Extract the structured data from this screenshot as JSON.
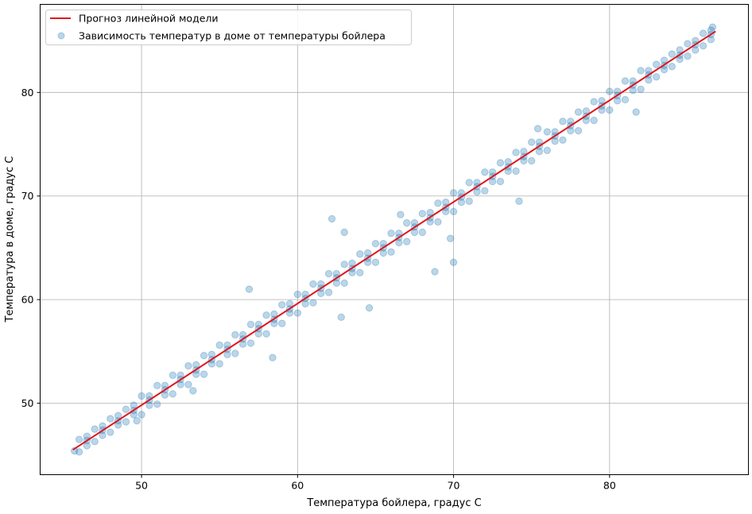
{
  "chart_data": {
    "type": "scatter",
    "title": "",
    "xlabel": "Температура бойлера, градус С",
    "ylabel": "Температура в доме, градус С",
    "xlim": [
      43.5,
      88.9
    ],
    "ylim": [
      43.1,
      88.5
    ],
    "xticks": [
      50,
      60,
      70,
      80
    ],
    "yticks": [
      50,
      60,
      70,
      80
    ],
    "grid": true,
    "legend_position": "top-left",
    "series": [
      {
        "name": "Прогноз линейной модели",
        "type": "line",
        "color": "#e0141e",
        "points": [
          [
            45.6,
            45.5
          ],
          [
            86.8,
            85.9
          ]
        ]
      },
      {
        "name": "Зависимость температур в доме от температуры бойлера",
        "type": "scatter",
        "color": "#1f77b4",
        "alpha": 0.3,
        "points": [
          [
            45.7,
            45.4
          ],
          [
            46,
            45.3
          ],
          [
            46,
            46.5
          ],
          [
            47,
            46.3
          ],
          [
            47,
            47.5
          ],
          [
            48,
            47.2
          ],
          [
            48,
            48.5
          ],
          [
            49,
            48.2
          ],
          [
            49,
            49.4
          ],
          [
            50,
            48.9
          ],
          [
            50,
            50.7
          ],
          [
            51,
            49.9
          ],
          [
            51,
            51.7
          ],
          [
            52,
            50.9
          ],
          [
            52,
            52.7
          ],
          [
            53,
            51.8
          ],
          [
            53,
            53.6
          ],
          [
            54,
            52.8
          ],
          [
            54,
            54.6
          ],
          [
            55,
            53.8
          ],
          [
            55,
            55.6
          ],
          [
            56,
            54.8
          ],
          [
            56,
            56.6
          ],
          [
            57,
            55.8
          ],
          [
            57,
            57.6
          ],
          [
            58,
            56.7
          ],
          [
            58,
            58.5
          ],
          [
            59,
            57.7
          ],
          [
            59,
            59.5
          ],
          [
            60,
            58.7
          ],
          [
            60,
            60.5
          ],
          [
            61,
            59.7
          ],
          [
            61,
            61.5
          ],
          [
            62,
            60.7
          ],
          [
            62,
            62.5
          ],
          [
            63,
            61.6
          ],
          [
            63,
            63.4
          ],
          [
            64,
            62.6
          ],
          [
            64,
            64.4
          ],
          [
            65,
            63.6
          ],
          [
            65,
            65.4
          ],
          [
            66,
            64.6
          ],
          [
            66,
            66.4
          ],
          [
            67,
            65.6
          ],
          [
            67,
            67.4
          ],
          [
            68,
            66.5
          ],
          [
            68,
            68.3
          ],
          [
            69,
            67.5
          ],
          [
            69,
            69.3
          ],
          [
            70,
            68.5
          ],
          [
            70,
            70.3
          ],
          [
            71,
            69.5
          ],
          [
            71,
            71.3
          ],
          [
            72,
            70.5
          ],
          [
            72,
            72.3
          ],
          [
            73,
            71.4
          ],
          [
            73,
            73.2
          ],
          [
            74,
            72.4
          ],
          [
            74,
            74.2
          ],
          [
            75,
            73.4
          ],
          [
            75,
            75.2
          ],
          [
            76,
            74.4
          ],
          [
            76,
            76.2
          ],
          [
            77,
            75.4
          ],
          [
            77,
            77.2
          ],
          [
            78,
            76.3
          ],
          [
            78,
            78.1
          ],
          [
            79,
            77.3
          ],
          [
            79,
            79.1
          ],
          [
            80,
            78.3
          ],
          [
            80,
            80.1
          ],
          [
            81,
            79.3
          ],
          [
            81,
            81.1
          ],
          [
            82,
            80.3
          ],
          [
            82,
            82.1
          ],
          [
            83,
            81.5
          ],
          [
            83,
            82.7
          ],
          [
            84,
            82.5
          ],
          [
            84,
            83.7
          ],
          [
            85,
            83.5
          ],
          [
            85,
            84.7
          ],
          [
            86,
            84.5
          ],
          [
            86,
            85.7
          ],
          [
            86.6,
            86.3
          ],
          [
            46.5,
            45.9
          ],
          [
            46.5,
            46.4
          ],
          [
            46.5,
            46.8
          ],
          [
            47.5,
            46.9
          ],
          [
            47.5,
            47.4
          ],
          [
            47.5,
            47.8
          ],
          [
            48.5,
            47.9
          ],
          [
            48.5,
            48.3
          ],
          [
            48.5,
            48.8
          ],
          [
            49.5,
            48.9
          ],
          [
            49.5,
            49.3
          ],
          [
            49.5,
            49.8
          ],
          [
            50.5,
            49.8
          ],
          [
            50.5,
            50.3
          ],
          [
            50.5,
            50.7
          ],
          [
            51.5,
            50.8
          ],
          [
            51.5,
            51.3
          ],
          [
            51.5,
            51.7
          ],
          [
            52.5,
            51.8
          ],
          [
            52.5,
            52.3
          ],
          [
            52.5,
            52.7
          ],
          [
            53.5,
            52.8
          ],
          [
            53.5,
            53.2
          ],
          [
            53.5,
            53.7
          ],
          [
            54.5,
            53.8
          ],
          [
            54.5,
            54.2
          ],
          [
            54.5,
            54.7
          ],
          [
            55.5,
            54.7
          ],
          [
            55.5,
            55.2
          ],
          [
            55.5,
            55.6
          ],
          [
            56.5,
            55.7
          ],
          [
            56.5,
            56.2
          ],
          [
            56.5,
            56.6
          ],
          [
            57.5,
            56.7
          ],
          [
            57.5,
            57.2
          ],
          [
            57.5,
            57.6
          ],
          [
            58.5,
            57.7
          ],
          [
            58.5,
            58.1
          ],
          [
            58.5,
            58.6
          ],
          [
            59.5,
            58.7
          ],
          [
            59.5,
            59.1
          ],
          [
            59.5,
            59.6
          ],
          [
            60.5,
            59.6
          ],
          [
            60.5,
            60.1
          ],
          [
            60.5,
            60.5
          ],
          [
            61.5,
            60.6
          ],
          [
            61.5,
            61.1
          ],
          [
            61.5,
            61.5
          ],
          [
            62.5,
            61.6
          ],
          [
            62.5,
            62.1
          ],
          [
            62.5,
            62.5
          ],
          [
            63.5,
            62.6
          ],
          [
            63.5,
            63.0
          ],
          [
            63.5,
            63.5
          ],
          [
            64.5,
            63.6
          ],
          [
            64.5,
            64.0
          ],
          [
            64.5,
            64.5
          ],
          [
            65.5,
            64.5
          ],
          [
            65.5,
            65.0
          ],
          [
            65.5,
            65.4
          ],
          [
            66.5,
            65.5
          ],
          [
            66.5,
            66.0
          ],
          [
            66.5,
            66.4
          ],
          [
            67.5,
            66.5
          ],
          [
            67.5,
            67.0
          ],
          [
            67.5,
            67.4
          ],
          [
            68.5,
            67.5
          ],
          [
            68.5,
            67.9
          ],
          [
            68.5,
            68.4
          ],
          [
            69.5,
            68.5
          ],
          [
            69.5,
            68.9
          ],
          [
            69.5,
            69.4
          ],
          [
            70.5,
            69.4
          ],
          [
            70.5,
            69.9
          ],
          [
            70.5,
            70.3
          ],
          [
            71.5,
            70.4
          ],
          [
            71.5,
            70.9
          ],
          [
            71.5,
            71.3
          ],
          [
            72.5,
            71.4
          ],
          [
            72.5,
            71.9
          ],
          [
            72.5,
            72.3
          ],
          [
            73.5,
            72.4
          ],
          [
            73.5,
            72.8
          ],
          [
            73.5,
            73.3
          ],
          [
            74.5,
            73.4
          ],
          [
            74.5,
            73.8
          ],
          [
            74.5,
            74.3
          ],
          [
            75.5,
            74.3
          ],
          [
            75.5,
            74.8
          ],
          [
            75.5,
            75.2
          ],
          [
            76.5,
            75.3
          ],
          [
            76.5,
            75.8
          ],
          [
            76.5,
            76.2
          ],
          [
            77.5,
            76.3
          ],
          [
            77.5,
            76.8
          ],
          [
            77.5,
            77.2
          ],
          [
            78.5,
            77.3
          ],
          [
            78.5,
            77.7
          ],
          [
            78.5,
            78.2
          ],
          [
            79.5,
            78.3
          ],
          [
            79.5,
            78.7
          ],
          [
            79.5,
            79.2
          ],
          [
            80.5,
            79.2
          ],
          [
            80.5,
            79.7
          ],
          [
            80.5,
            80.1
          ],
          [
            81.5,
            80.2
          ],
          [
            81.5,
            80.7
          ],
          [
            81.5,
            81.1
          ],
          [
            82.5,
            81.2
          ],
          [
            82.5,
            81.7
          ],
          [
            82.5,
            82.1
          ],
          [
            83.5,
            82.2
          ],
          [
            83.5,
            82.6
          ],
          [
            83.5,
            83.1
          ],
          [
            84.5,
            83.2
          ],
          [
            84.5,
            83.6
          ],
          [
            84.5,
            84.1
          ],
          [
            85.5,
            84.1
          ],
          [
            85.5,
            84.6
          ],
          [
            85.5,
            85.0
          ],
          [
            86.5,
            85.1
          ],
          [
            86.5,
            85.6
          ],
          [
            86.5,
            86.0
          ],
          [
            70.0,
            63.6
          ],
          [
            68.8,
            62.7
          ],
          [
            62.2,
            67.8
          ],
          [
            64.6,
            59.2
          ],
          [
            58.4,
            54.4
          ],
          [
            81.7,
            78.1
          ],
          [
            74.2,
            69.5
          ],
          [
            49.7,
            48.3
          ],
          [
            56.9,
            61.0
          ],
          [
            63.0,
            66.5
          ],
          [
            66.6,
            68.2
          ],
          [
            69.8,
            65.9
          ],
          [
            62.8,
            58.3
          ],
          [
            53.3,
            51.2
          ],
          [
            75.4,
            76.5
          ]
        ]
      }
    ]
  }
}
